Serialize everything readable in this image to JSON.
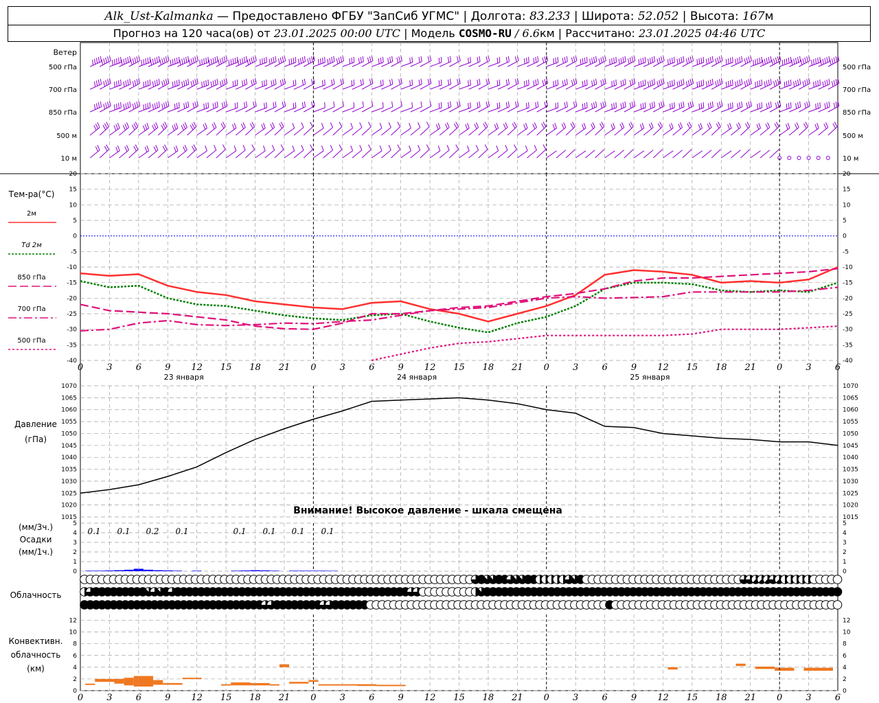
{
  "header": {
    "station": "Alk_Ust-Kalmanka",
    "sep1": " — ",
    "provider": "Предоставлено ФГБУ \"ЗапСиб УГМС\"",
    "lon_label": " | Долгота: ",
    "lon": "83.233",
    "lat_label": " | Широта: ",
    "lat": "52.052",
    "alt_label": " | Высота: ",
    "alt": "167",
    "alt_unit": "м",
    "forecast_label": "Прогноз на 120 часа(ов) от ",
    "forecast_from": "23.01.2025 00:00 UTC",
    "model_label": "  | Модель ",
    "model": "COSMO-RU",
    "model_res": " / 6.6",
    "model_res_unit": "км",
    "calc_label": " | Рассчитано: ",
    "calc_time": "23.01.2025 04:46 UTC"
  },
  "labels": {
    "wind": "Ветер",
    "wind_levels": [
      "500 гПа",
      "700 гПа",
      "850 гПа",
      "500 м",
      "10 м"
    ],
    "temp": "Тем-ра(°С)",
    "temp_legend": [
      "2м",
      "Td 2м",
      "850 гПа",
      "700 гПа",
      "500 гПа"
    ],
    "pressure": "Давление",
    "pressure_unit": "(гПа)",
    "warning": "Внимание! Высокое давление - шкала смещена",
    "precip_top": "(мм/3ч.)",
    "precip": "Осадки",
    "precip_bottom": "(мм/1ч.)",
    "cloud": "Облачность",
    "conv1": "Конвективн.",
    "conv2": "облачность",
    "conv3": "(км)",
    "days": [
      "23 января",
      "24 января",
      "25 января"
    ],
    "hour_ticks": [
      "0",
      "3",
      "6",
      "9",
      "12",
      "15",
      "18",
      "21",
      "0",
      "3",
      "6",
      "9",
      "12",
      "15",
      "18",
      "21",
      "0",
      "3",
      "6",
      "9",
      "12",
      "15",
      "18",
      "21",
      "0",
      "3",
      "6"
    ]
  },
  "colors": {
    "t2m": "#ff3030",
    "td2m": "#008000",
    "t850": "#e0107a",
    "t700": "#e0107a",
    "t500": "#e0107a",
    "wind": "#9000d0",
    "pressure": "#000000",
    "precip": "#0000ff",
    "conv": "#f07820",
    "zero": "#0000ff",
    "grid": "#a0a0a0"
  },
  "chart_data": [
    {
      "type": "line",
      "title": "Тем-ра(°С)",
      "x_hours": [
        0,
        3,
        6,
        9,
        12,
        15,
        18,
        21,
        24,
        27,
        30,
        33,
        36,
        39,
        42,
        45,
        48,
        51,
        54,
        57,
        60,
        63,
        66,
        69,
        72,
        75,
        78
      ],
      "ylim": [
        -40,
        20
      ],
      "series": [
        {
          "name": "2м",
          "values": [
            -12,
            -12.8,
            -12.3,
            -16,
            -18,
            -19,
            -21,
            -22,
            -23,
            -23.5,
            -21.5,
            -21,
            -23.5,
            -25,
            -27.5,
            -25,
            -22.5,
            -19,
            -12.5,
            -11,
            -11.5,
            -12.5,
            -15,
            -14.5,
            -15,
            -14,
            -10
          ]
        },
        {
          "name": "Td 2м",
          "values": [
            -14.5,
            -16.5,
            -16,
            -20,
            -22,
            -22.5,
            -24,
            -25.5,
            -26.5,
            -27,
            -25.5,
            -25,
            -27.5,
            -29.5,
            -31,
            -28,
            -26,
            -22.5,
            -17,
            -15,
            -15,
            -15.5,
            -17.5,
            -18,
            -17.5,
            -18,
            -15
          ]
        },
        {
          "name": "850 гПа",
          "values": [
            -22,
            -24,
            -24.5,
            -25,
            -26,
            -27,
            -29,
            -29.8,
            -30,
            -28,
            -25,
            -25,
            -24,
            -23,
            -22.5,
            -21,
            -19.5,
            -18.5,
            -17,
            -14.5,
            -13.5,
            -13.5,
            -13,
            -12.5,
            -12,
            -11.5,
            -10.5
          ]
        },
        {
          "name": "700 гПа",
          "values": [
            -30.5,
            -30,
            -28,
            -27.2,
            -28.5,
            -28.8,
            -28.5,
            -28,
            -28.2,
            -27.5,
            -27,
            -25.5,
            -24,
            -23.5,
            -23,
            -21.5,
            -20,
            -19.5,
            -20,
            -19.8,
            -19.5,
            -18,
            -18,
            -18,
            -18,
            -17.5,
            -16.5
          ]
        },
        {
          "name": "500 гПа",
          "values": [
            null,
            null,
            null,
            null,
            null,
            null,
            null,
            null,
            null,
            null,
            -40,
            -38,
            -36,
            -34.5,
            -34,
            -33,
            -32,
            -32,
            -32,
            -32,
            -32,
            -31.5,
            -30,
            -30,
            -30,
            -29.5,
            -29
          ]
        }
      ]
    },
    {
      "type": "line",
      "title": "Давление",
      "x_hours": [
        0,
        3,
        6,
        9,
        12,
        15,
        18,
        21,
        24,
        27,
        30,
        33,
        36,
        39,
        42,
        45,
        48,
        51,
        54,
        57,
        60,
        63,
        66,
        69,
        72,
        75,
        78
      ],
      "ylim": [
        1015,
        1070
      ],
      "series": [
        {
          "name": "Давление",
          "values": [
            1025,
            1026.5,
            1028.5,
            1032,
            1036,
            1042,
            1047.5,
            1052,
            1056,
            1059.5,
            1063.5,
            1064,
            1064.5,
            1065,
            1064,
            1062.5,
            1060,
            1058.5,
            1053,
            1052.5,
            1050,
            1049,
            1048,
            1047.5,
            1046.5,
            1046.5,
            1045
          ]
        }
      ]
    },
    {
      "type": "bar",
      "title": "Осадки",
      "ylim": [
        0,
        5
      ],
      "labels_mm3h": [
        "0.1",
        "0.1",
        "0.2",
        "0.1",
        "0.1",
        "0.1",
        "0.1",
        "0.1"
      ],
      "bars_hourly": [
        {
          "x": 1,
          "v": 0.05
        },
        {
          "x": 2,
          "v": 0.05
        },
        {
          "x": 3,
          "v": 0.07
        },
        {
          "x": 4,
          "v": 0.1
        },
        {
          "x": 5,
          "v": 0.15
        },
        {
          "x": 6,
          "v": 0.25
        },
        {
          "x": 7,
          "v": 0.15
        },
        {
          "x": 8,
          "v": 0.1
        },
        {
          "x": 9,
          "v": 0.08
        },
        {
          "x": 10,
          "v": 0.05
        },
        {
          "x": 12,
          "v": 0.05
        },
        {
          "x": 16,
          "v": 0.05
        },
        {
          "x": 17,
          "v": 0.07
        },
        {
          "x": 18,
          "v": 0.1
        },
        {
          "x": 19,
          "v": 0.08
        },
        {
          "x": 20,
          "v": 0.05
        },
        {
          "x": 22,
          "v": 0.05
        },
        {
          "x": 23,
          "v": 0.05
        },
        {
          "x": 24,
          "v": 0.05
        },
        {
          "x": 25,
          "v": 0.05
        },
        {
          "x": 26,
          "v": 0.04
        }
      ]
    },
    {
      "type": "bar",
      "title": "Конвективн. облачность",
      "ylim": [
        0,
        13
      ],
      "layers": [
        {
          "x0": 0.5,
          "x1": 1.5,
          "b": 1.0,
          "t": 1.2
        },
        {
          "x0": 1.5,
          "x1": 3.5,
          "b": 1.5,
          "t": 2.0
        },
        {
          "x0": 3.5,
          "x1": 4.5,
          "b": 1.2,
          "t": 2.0
        },
        {
          "x0": 4.5,
          "x1": 5.5,
          "b": 0.9,
          "t": 2.2
        },
        {
          "x0": 5.5,
          "x1": 7.5,
          "b": 0.7,
          "t": 2.5
        },
        {
          "x0": 7.5,
          "x1": 8.5,
          "b": 1.0,
          "t": 1.8
        },
        {
          "x0": 8.5,
          "x1": 10.5,
          "b": 1.0,
          "t": 1.3
        },
        {
          "x0": 10.5,
          "x1": 12.5,
          "b": 2.0,
          "t": 2.2
        },
        {
          "x0": 14.5,
          "x1": 15.5,
          "b": 0.9,
          "t": 1.1
        },
        {
          "x0": 15.5,
          "x1": 17.5,
          "b": 0.9,
          "t": 1.4
        },
        {
          "x0": 17.5,
          "x1": 19.5,
          "b": 0.9,
          "t": 1.3
        },
        {
          "x0": 19.5,
          "x1": 20.5,
          "b": 0.9,
          "t": 1.1
        },
        {
          "x0": 20.5,
          "x1": 21.5,
          "b": 4.0,
          "t": 4.5
        },
        {
          "x0": 21.5,
          "x1": 23.5,
          "b": 1.2,
          "t": 1.5
        },
        {
          "x0": 23.5,
          "x1": 24.5,
          "b": 1.5,
          "t": 1.8
        },
        {
          "x0": 24.5,
          "x1": 28.5,
          "b": 0.9,
          "t": 1.1
        },
        {
          "x0": 28.5,
          "x1": 30.5,
          "b": 0.8,
          "t": 1.1
        },
        {
          "x0": 30.5,
          "x1": 33.5,
          "b": 0.8,
          "t": 1.0
        },
        {
          "x0": 60.5,
          "x1": 61.5,
          "b": 3.6,
          "t": 4.0
        },
        {
          "x0": 67.5,
          "x1": 68.5,
          "b": 4.2,
          "t": 4.6
        },
        {
          "x0": 69.5,
          "x1": 71.5,
          "b": 3.7,
          "t": 4.1
        },
        {
          "x0": 71.5,
          "x1": 73.5,
          "b": 3.4,
          "t": 3.9
        },
        {
          "x0": 74.5,
          "x1": 77.5,
          "b": 3.4,
          "t": 3.9
        }
      ]
    },
    {
      "type": "table",
      "title": "Облачность",
      "rows": [
        {
          "level": "upper",
          "fill_eighths": [
            0,
            0,
            0,
            0,
            0,
            0,
            0,
            0,
            0,
            0,
            0,
            0,
            0,
            0,
            0,
            0,
            0,
            0,
            0,
            0,
            0,
            0,
            0,
            0,
            0,
            0,
            0,
            0,
            0,
            0,
            0,
            0,
            0,
            0,
            0,
            0,
            0,
            0,
            0,
            0,
            0,
            0,
            0,
            0,
            0,
            0,
            0,
            0,
            0,
            0,
            0,
            0,
            0,
            0,
            0,
            0,
            0,
            0,
            0,
            0,
            0,
            0,
            0,
            0,
            0,
            0,
            0,
            6,
            8,
            7,
            7,
            8,
            8,
            6,
            7,
            7,
            8,
            8,
            4,
            4,
            4,
            4,
            4,
            6,
            7,
            8,
            0,
            0,
            0,
            0,
            0,
            0,
            0,
            0,
            0,
            0,
            0,
            0,
            0,
            0,
            0,
            0,
            0,
            0,
            0,
            0,
            0,
            0,
            0,
            0,
            0,
            0,
            0,
            6,
            6,
            5,
            5,
            5,
            6,
            5,
            4,
            4,
            4,
            4,
            4,
            0,
            0,
            0,
            0,
            0
          ]
        },
        {
          "level": "middle",
          "fill_eighths": [
            4,
            6,
            8,
            8,
            8,
            8,
            8,
            8,
            8,
            8,
            8,
            7,
            6,
            7,
            8,
            6,
            8,
            8,
            8,
            8,
            8,
            8,
            8,
            8,
            8,
            8,
            8,
            8,
            8,
            8,
            8,
            8,
            8,
            8,
            8,
            8,
            8,
            8,
            8,
            8,
            8,
            8,
            8,
            8,
            8,
            8,
            8,
            8,
            8,
            8,
            8,
            8,
            8,
            8,
            8,
            8,
            6,
            6,
            0,
            0,
            0,
            0,
            0,
            0,
            0,
            0,
            0,
            4,
            7,
            8,
            8,
            8,
            8,
            8,
            8,
            8,
            8,
            8,
            8,
            8,
            8,
            8,
            8,
            8,
            8,
            8,
            8,
            8,
            8,
            8,
            8,
            8,
            8,
            8,
            8,
            8,
            8,
            8,
            8,
            8,
            8,
            8,
            8,
            8,
            8,
            8,
            8,
            8,
            8,
            8,
            8,
            8,
            8,
            8,
            8,
            8,
            8,
            8,
            8,
            8,
            8,
            8,
            8,
            8,
            8,
            8,
            8,
            8,
            8,
            8,
            5
          ]
        },
        {
          "level": "lower",
          "fill_eighths": [
            8,
            8,
            8,
            8,
            8,
            8,
            8,
            8,
            8,
            8,
            8,
            8,
            8,
            8,
            8,
            8,
            8,
            8,
            8,
            8,
            8,
            8,
            8,
            8,
            8,
            8,
            8,
            8,
            8,
            8,
            8,
            6,
            6,
            8,
            8,
            8,
            8,
            8,
            8,
            8,
            8,
            6,
            6,
            8,
            8,
            8,
            8,
            8,
            8,
            0,
            0,
            0,
            0,
            0,
            0,
            0,
            0,
            0,
            0,
            0,
            0,
            0,
            0,
            0,
            0,
            0,
            0,
            0,
            0,
            0,
            0,
            0,
            0,
            0,
            0,
            0,
            0,
            0,
            0,
            0,
            0,
            0,
            0,
            0,
            0,
            0,
            0,
            0,
            0,
            0,
            8,
            0,
            0,
            0,
            0,
            0,
            0,
            0,
            0,
            0,
            0,
            0,
            0,
            0,
            0,
            0,
            0,
            0,
            0,
            0,
            0,
            0,
            0,
            0,
            0,
            0,
            0,
            0,
            0,
            0,
            0,
            0,
            0,
            0,
            0,
            0,
            0,
            0,
            0,
            0,
            0
          ]
        }
      ]
    },
    {
      "type": "scatter",
      "title": "Ветер",
      "levels": [
        "500 гПа",
        "700 гПа",
        "850 гПа",
        "500 м",
        "10 м"
      ],
      "speed_ms": [
        [
          28,
          28,
          28,
          26,
          26,
          24,
          22,
          20,
          18,
          16,
          14,
          12,
          10,
          10,
          12,
          14,
          16,
          18,
          18,
          20,
          20,
          22,
          22,
          24,
          24,
          26,
          26
        ],
        [
          22,
          22,
          22,
          20,
          18,
          16,
          14,
          12,
          10,
          8,
          8,
          8,
          8,
          10,
          12,
          14,
          14,
          16,
          16,
          18,
          18,
          18,
          18,
          20,
          20,
          22,
          22
        ],
        [
          18,
          18,
          18,
          16,
          14,
          12,
          10,
          8,
          6,
          6,
          6,
          6,
          8,
          10,
          10,
          12,
          12,
          14,
          14,
          14,
          14,
          16,
          16,
          16,
          16,
          16,
          16
        ],
        [
          16,
          16,
          16,
          14,
          12,
          10,
          8,
          6,
          6,
          6,
          6,
          6,
          8,
          8,
          8,
          10,
          10,
          10,
          10,
          10,
          10,
          10,
          10,
          10,
          10,
          10,
          10
        ],
        [
          10,
          10,
          10,
          8,
          6,
          4,
          4,
          4,
          4,
          4,
          4,
          4,
          4,
          4,
          4,
          4,
          2,
          2,
          2,
          2,
          2,
          2,
          2,
          2,
          0,
          0,
          0
        ]
      ]
    }
  ]
}
